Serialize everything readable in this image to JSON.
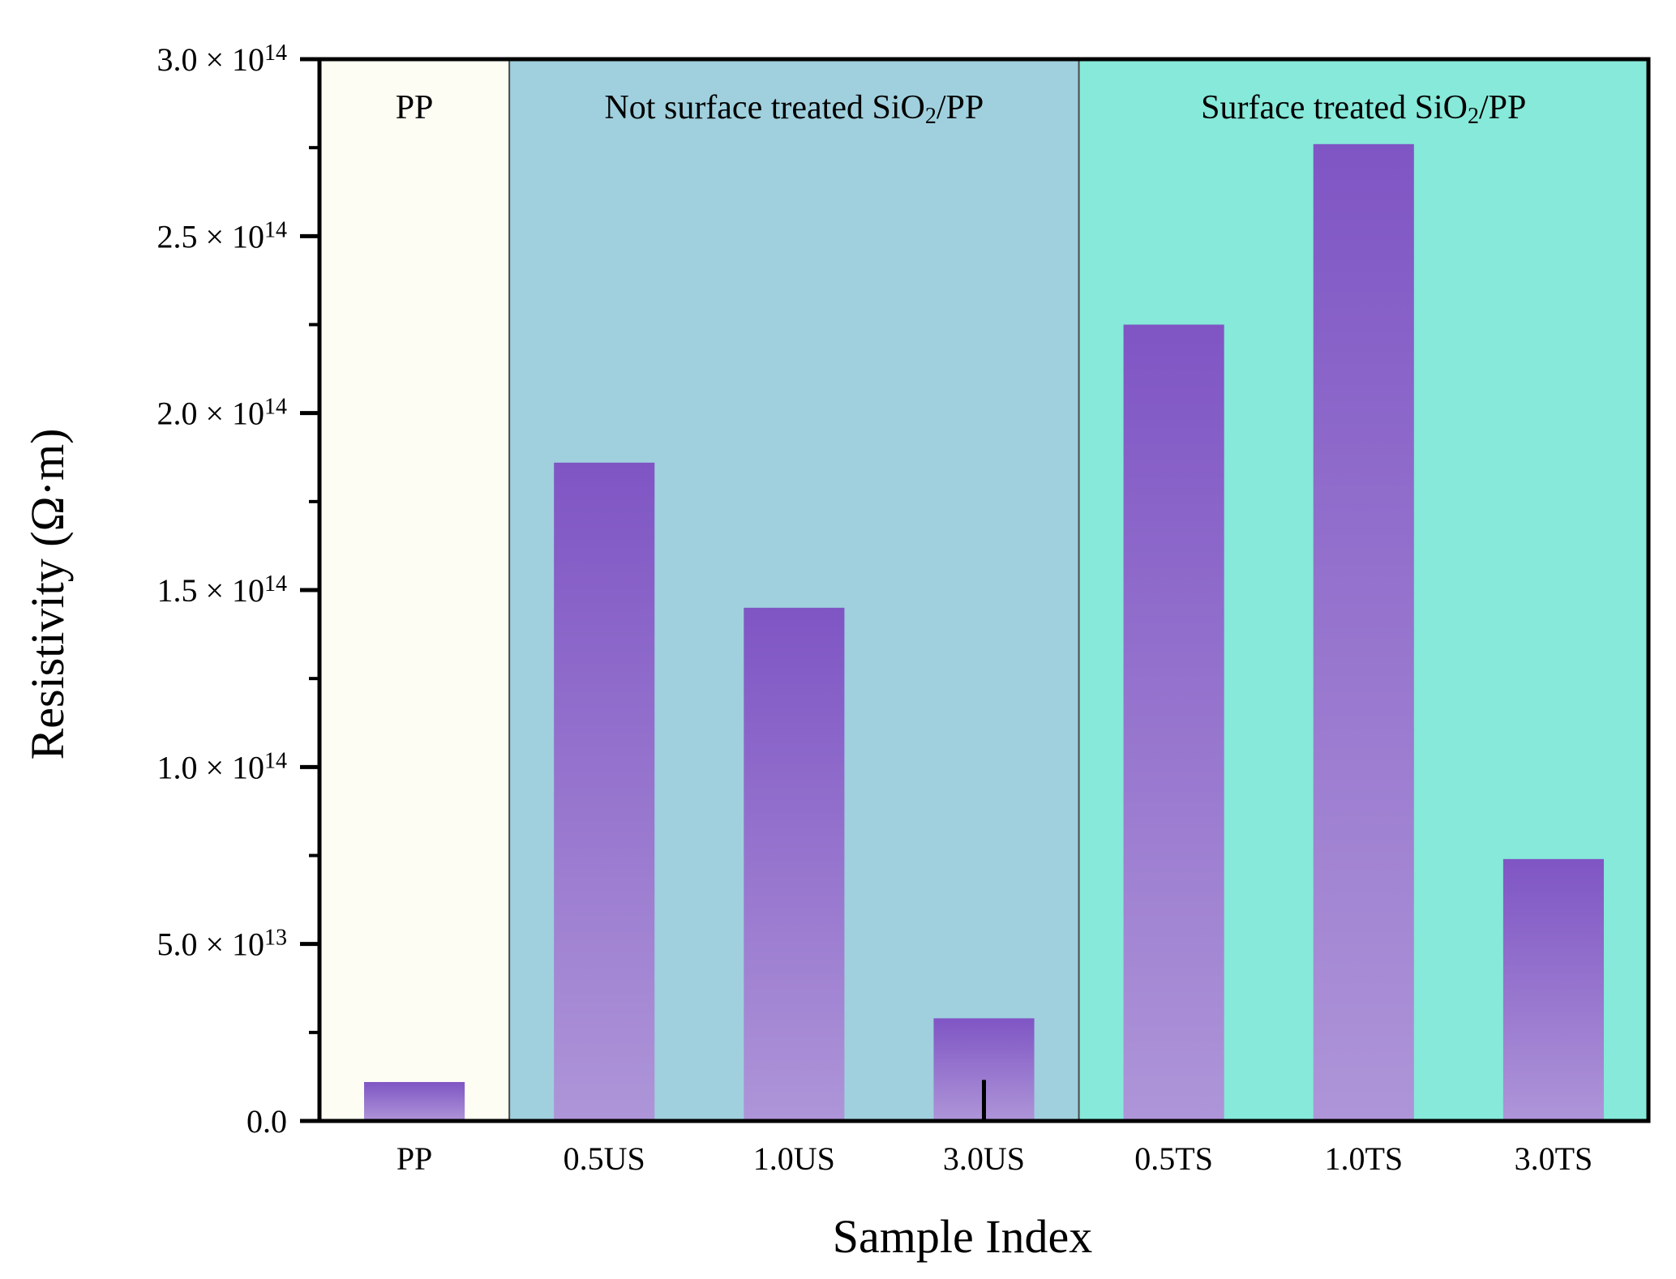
{
  "chart_data": {
    "type": "bar",
    "xlabel": "Sample Index",
    "ylabel": "Resistivity (Ω·m)",
    "ylim": [
      0,
      300000000000000.0
    ],
    "categories": [
      "PP",
      "0.5US",
      "1.0US",
      "3.0US",
      "0.5TS",
      "1.0TS",
      "3.0TS"
    ],
    "values": [
      11000000000000.0,
      186000000000000.0,
      145000000000000.0,
      29000000000000.0,
      225000000000000.0,
      276000000000000.0,
      74000000000000.0
    ],
    "error_values": [
      0,
      0,
      0,
      10000000000000.0,
      0,
      0,
      0
    ],
    "y_ticks": [
      {
        "value": 0,
        "mantissa": "0.0",
        "times": "",
        "base": "",
        "exp": ""
      },
      {
        "value": 50000000000000.0,
        "mantissa": "5.0",
        "times": " × ",
        "base": "10",
        "exp": "13"
      },
      {
        "value": 100000000000000.0,
        "mantissa": "1.0",
        "times": " × ",
        "base": "10",
        "exp": "14"
      },
      {
        "value": 150000000000000.0,
        "mantissa": "1.5",
        "times": " × ",
        "base": "10",
        "exp": "14"
      },
      {
        "value": 200000000000000.0,
        "mantissa": "2.0",
        "times": " × ",
        "base": "10",
        "exp": "14"
      },
      {
        "value": 250000000000000.0,
        "mantissa": "2.5",
        "times": " × ",
        "base": "10",
        "exp": "14"
      },
      {
        "value": 300000000000000.0,
        "mantissa": "3.0",
        "times": " × ",
        "base": "10",
        "exp": "14"
      }
    ],
    "minor_tick_step": 25000000000000.0,
    "groups": [
      {
        "start": 0,
        "end": 0,
        "label": "PP",
        "label_sub": "",
        "label_tail": "",
        "color": "#fdfdf3"
      },
      {
        "start": 1,
        "end": 3,
        "label": "Not surface treated SiO",
        "label_sub": "2",
        "label_tail": "/PP",
        "color": "#a0d0de"
      },
      {
        "start": 4,
        "end": 6,
        "label": "Surface treated SiO",
        "label_sub": "2",
        "label_tail": "/PP",
        "color": "#86e9d9"
      }
    ],
    "bar_color_top": "#7f55c4",
    "bar_color_bottom": "#ae95d8",
    "grid": false,
    "legend": "none"
  }
}
